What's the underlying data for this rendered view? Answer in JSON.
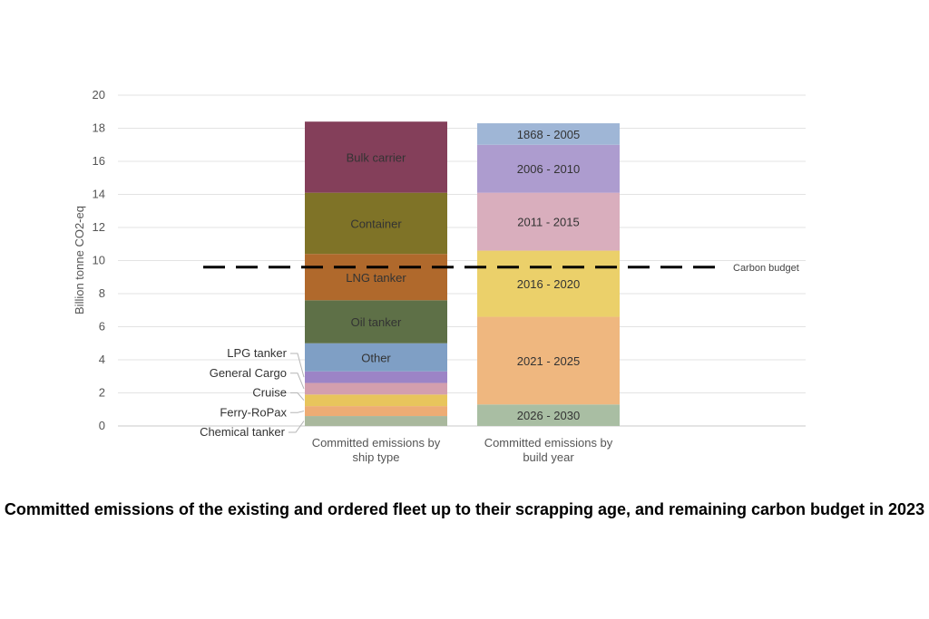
{
  "chart_data": {
    "type": "bar",
    "stacked": true,
    "ylabel": "Billion tonne CO2-eq",
    "ylim": [
      0,
      20
    ],
    "yticks": [
      "0",
      "2",
      "4",
      "6",
      "8",
      "10",
      "12",
      "14",
      "16",
      "18",
      "20"
    ],
    "grid": true,
    "title": "Committed emissions of the existing and ordered fleet up to their scrapping age, and remaining carbon budget in 2023",
    "carbon_budget": {
      "label": "Carbon budget",
      "value": 9.6
    },
    "bars": [
      {
        "category": "Committed emissions by ship type",
        "segments": [
          {
            "name": "Chemical tanker",
            "value": 0.6,
            "color": "#a9b89d",
            "label_position": "outside"
          },
          {
            "name": "Ferry-RoPax",
            "value": 0.6,
            "color": "#eeac74",
            "label_position": "outside"
          },
          {
            "name": "Cruise",
            "value": 0.7,
            "color": "#e8c55c",
            "label_position": "outside"
          },
          {
            "name": "General Cargo",
            "value": 0.7,
            "color": "#d39fae",
            "label_position": "outside"
          },
          {
            "name": "LPG tanker",
            "value": 0.7,
            "color": "#9c84c6",
            "label_position": "outside"
          },
          {
            "name": "Other",
            "value": 1.7,
            "color": "#7f9fc5",
            "label_position": "inside"
          },
          {
            "name": "Oil tanker",
            "value": 2.6,
            "color": "#5e7047",
            "label_position": "inside"
          },
          {
            "name": "LNG tanker",
            "value": 2.8,
            "color": "#b0692c",
            "label_position": "inside"
          },
          {
            "name": "Container",
            "value": 3.7,
            "color": "#7f7327",
            "label_position": "inside"
          },
          {
            "name": "Bulk carrier",
            "value": 4.3,
            "color": "#843f5a",
            "label_position": "inside"
          }
        ]
      },
      {
        "category": "Committed emissions by build year",
        "segments": [
          {
            "name": "2026 - 2030",
            "value": 1.3,
            "color": "#a9bea3",
            "label_position": "inside"
          },
          {
            "name": "2021 - 2025",
            "value": 5.3,
            "color": "#efb77f",
            "label_position": "inside"
          },
          {
            "name": "2016 - 2020",
            "value": 4.0,
            "color": "#ebd06a",
            "label_position": "inside"
          },
          {
            "name": "2011 - 2015",
            "value": 3.5,
            "color": "#d9aebd",
            "label_position": "inside"
          },
          {
            "name": "2006 - 2010",
            "value": 2.9,
            "color": "#ad9ccf",
            "label_position": "inside"
          },
          {
            "name": "1868 - 2005",
            "value": 1.3,
            "color": "#9fb6d6",
            "label_position": "inside"
          }
        ]
      }
    ]
  }
}
